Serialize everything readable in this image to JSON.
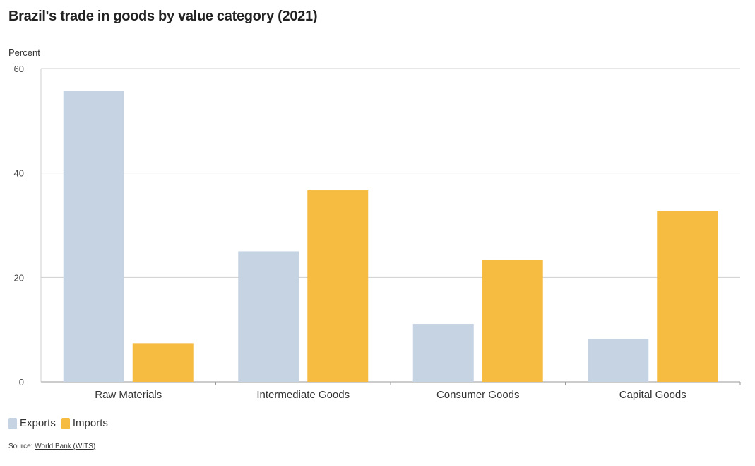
{
  "page": {
    "title": "Brazil's trade in goods by value category (2021)",
    "source_prefix": "Source:",
    "source_link": "World Bank (WITS)"
  },
  "chart_data": {
    "type": "bar",
    "title": "Brazil's trade in goods by value category (2021)",
    "ylabel": "Percent",
    "xlabel": "",
    "ylim": [
      0,
      60
    ],
    "yticks": [
      0,
      20,
      40,
      60
    ],
    "grid": true,
    "legend_position": "bottom-left",
    "categories": [
      "Raw Materials",
      "Intermediate Goods",
      "Consumer Goods",
      "Capital Goods"
    ],
    "series": [
      {
        "name": "Exports",
        "color": "#c5d3e3",
        "values": [
          55.8,
          25.0,
          11.1,
          8.2
        ]
      },
      {
        "name": "Imports",
        "color": "#f6bc42",
        "values": [
          7.4,
          36.7,
          23.3,
          32.7
        ]
      }
    ]
  }
}
